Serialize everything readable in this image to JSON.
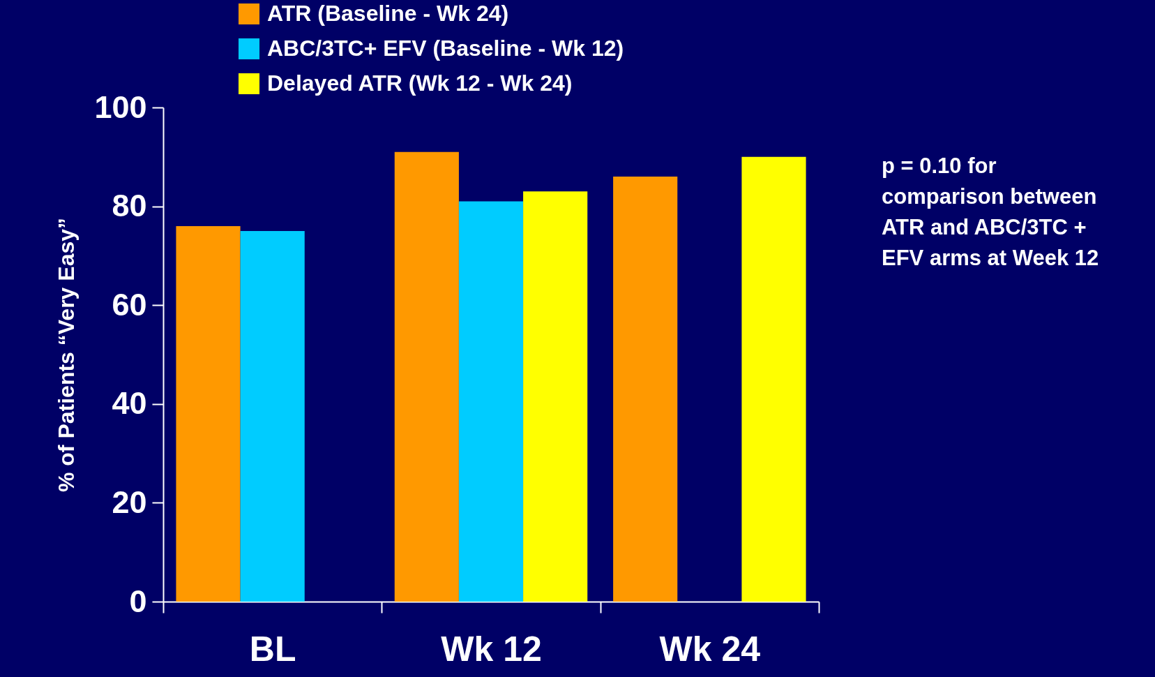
{
  "chart_data": {
    "type": "bar",
    "ylabel": "% of Patients “Very Easy”",
    "categories": [
      "BL",
      "Wk 12",
      "Wk 24"
    ],
    "series": [
      {
        "name": "ATR (Baseline - Wk 24)",
        "color": "#ff9900",
        "values": [
          76,
          91,
          86
        ]
      },
      {
        "name": "ABC/3TC+ EFV (Baseline - Wk 12)",
        "color": "#00ccff",
        "values": [
          75,
          81,
          null
        ]
      },
      {
        "name": "Delayed ATR (Wk 12 - Wk 24)",
        "color": "#ffff00",
        "values": [
          null,
          83,
          90
        ]
      }
    ],
    "ylim": [
      0,
      100
    ],
    "yticks": [
      0,
      20,
      40,
      60,
      80,
      100
    ],
    "grid": false,
    "legend": "top left",
    "annotations": [
      "p = 0.10 for comparison between ATR and ABC/3TC + EFV arms at Week 12"
    ]
  }
}
